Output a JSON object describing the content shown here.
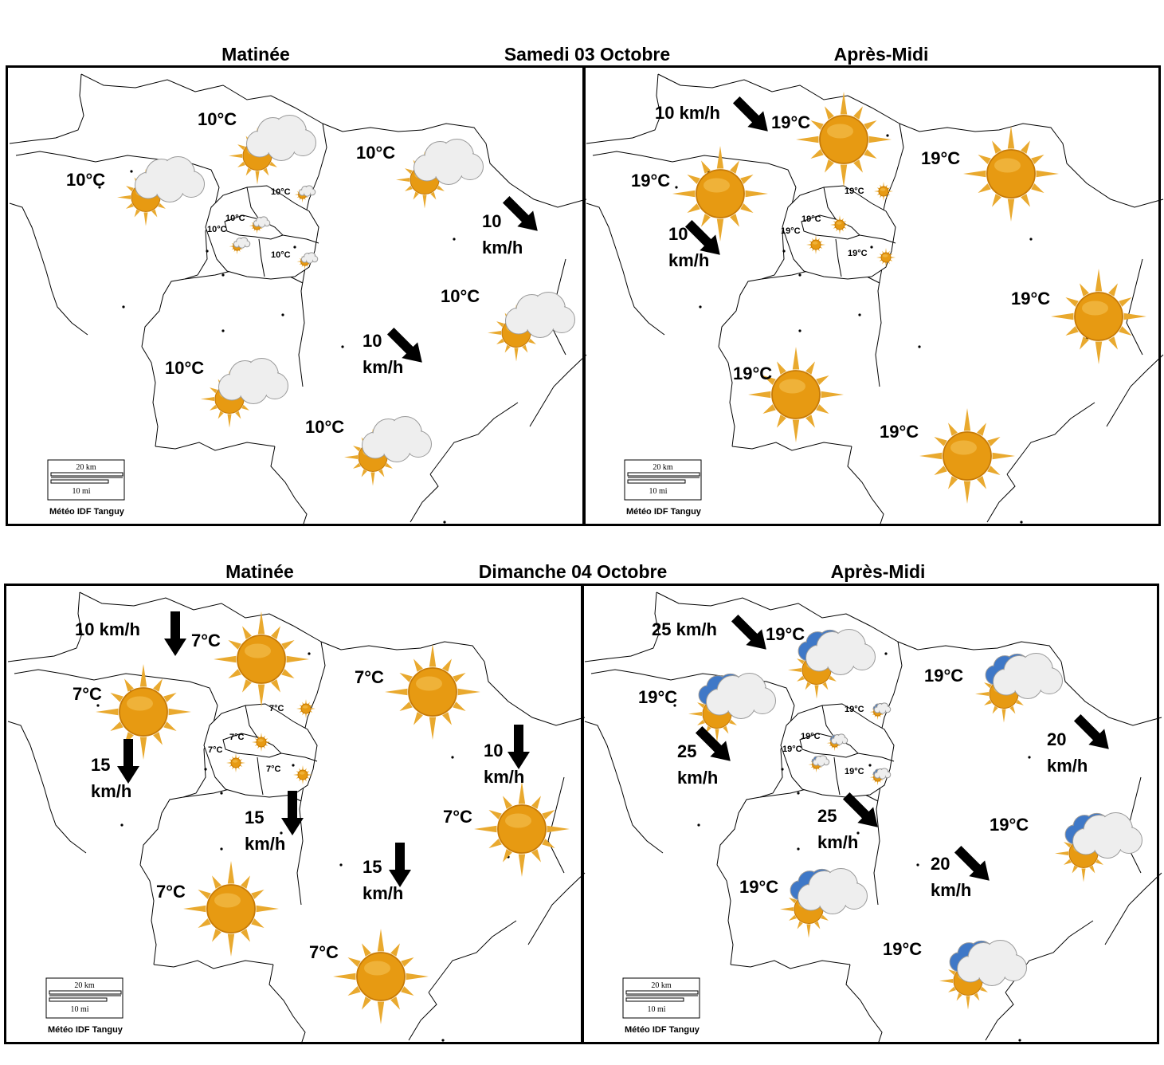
{
  "colors": {
    "sun_core": "#e79a12",
    "sun_rays": "#e9a92e",
    "cloud": "#eeeeee",
    "cloud_dark": "#3f78c7",
    "border": "#000000"
  },
  "scale_bar": {
    "km_label": "20 km",
    "mi_label": "10 mi"
  },
  "credit": "Météo IDF Tanguy",
  "days": [
    {
      "date_label": "Samedi 03 Octobre",
      "morning": {
        "label": "Matinée",
        "temps": [
          {
            "text": "10°C",
            "icon": "sun-cloud-icon",
            "size": "large"
          },
          {
            "text": "10°C",
            "icon": "sun-cloud-icon",
            "size": "large"
          },
          {
            "text": "10°C",
            "icon": "sun-cloud-icon",
            "size": "large"
          },
          {
            "text": "10°C",
            "icon": "sun-cloud-icon",
            "size": "large"
          },
          {
            "text": "10°C",
            "icon": "sun-cloud-icon",
            "size": "large"
          },
          {
            "text": "10°C",
            "icon": "sun-cloud-icon",
            "size": "large"
          },
          {
            "text": "10°C",
            "icon": "sun-cloud-icon",
            "size": "small"
          },
          {
            "text": "10°C",
            "icon": "sun-cloud-icon",
            "size": "small"
          },
          {
            "text": "10°C",
            "icon": "sun-cloud-icon",
            "size": "small"
          },
          {
            "text": "10°C",
            "icon": "sun-cloud-icon",
            "size": "small"
          }
        ],
        "winds": [
          {
            "line1": "10",
            "line2": "km/h",
            "direction": "south-east"
          },
          {
            "line1": "10",
            "line2": "km/h",
            "direction": "south-east"
          }
        ]
      },
      "afternoon": {
        "label": "Après-Midi",
        "temps": [
          {
            "text": "19°C",
            "icon": "sun-icon",
            "size": "large"
          },
          {
            "text": "19°C",
            "icon": "sun-icon",
            "size": "large"
          },
          {
            "text": "19°C",
            "icon": "sun-icon",
            "size": "large"
          },
          {
            "text": "19°C",
            "icon": "sun-icon",
            "size": "large"
          },
          {
            "text": "19°C",
            "icon": "sun-icon",
            "size": "large"
          },
          {
            "text": "19°C",
            "icon": "sun-icon",
            "size": "large"
          },
          {
            "text": "19°C",
            "icon": "sun-icon",
            "size": "small"
          },
          {
            "text": "19°C",
            "icon": "sun-icon",
            "size": "small"
          },
          {
            "text": "19°C",
            "icon": "sun-icon",
            "size": "small"
          },
          {
            "text": "19°C",
            "icon": "sun-icon",
            "size": "small"
          }
        ],
        "winds": [
          {
            "line1": "10 km/h",
            "line2": "",
            "direction": "south-east"
          },
          {
            "line1": "10",
            "line2": "km/h",
            "direction": "south-east"
          }
        ]
      }
    },
    {
      "date_label": "Dimanche 04 Octobre",
      "morning": {
        "label": "Matinée",
        "temps": [
          {
            "text": "7°C",
            "icon": "sun-icon",
            "size": "large"
          },
          {
            "text": "7°C",
            "icon": "sun-icon",
            "size": "large"
          },
          {
            "text": "7°C",
            "icon": "sun-icon",
            "size": "large"
          },
          {
            "text": "7°C",
            "icon": "sun-icon",
            "size": "large"
          },
          {
            "text": "7°C",
            "icon": "sun-icon",
            "size": "large"
          },
          {
            "text": "7°C",
            "icon": "sun-icon",
            "size": "large"
          },
          {
            "text": "7°C",
            "icon": "sun-icon",
            "size": "small"
          },
          {
            "text": "7°C",
            "icon": "sun-icon",
            "size": "small"
          },
          {
            "text": "7°C",
            "icon": "sun-icon",
            "size": "small"
          },
          {
            "text": "7°C",
            "icon": "sun-icon",
            "size": "small"
          }
        ],
        "winds": [
          {
            "line1": "10 km/h",
            "line2": "",
            "direction": "south"
          },
          {
            "line1": "15",
            "line2": "km/h",
            "direction": "south"
          },
          {
            "line1": "10",
            "line2": "km/h",
            "direction": "south"
          },
          {
            "line1": "15",
            "line2": "km/h",
            "direction": "south"
          },
          {
            "line1": "15",
            "line2": "km/h",
            "direction": "south"
          }
        ]
      },
      "afternoon": {
        "label": "Après-Midi",
        "temps": [
          {
            "text": "19°C",
            "icon": "sun-cloud-icon",
            "size": "large"
          },
          {
            "text": "19°C",
            "icon": "sun-cloud-icon",
            "size": "large"
          },
          {
            "text": "19°C",
            "icon": "sun-cloud-icon",
            "size": "large"
          },
          {
            "text": "19°C",
            "icon": "sun-cloud-icon",
            "size": "large"
          },
          {
            "text": "19°C",
            "icon": "sun-cloud-icon",
            "size": "large"
          },
          {
            "text": "19°C",
            "icon": "sun-cloud-icon",
            "size": "large"
          },
          {
            "text": "19°C",
            "icon": "sun-cloud-icon",
            "size": "small"
          },
          {
            "text": "19°C",
            "icon": "sun-cloud-icon",
            "size": "small"
          },
          {
            "text": "19°C",
            "icon": "sun-cloud-icon",
            "size": "small"
          },
          {
            "text": "19°C",
            "icon": "sun-cloud-icon",
            "size": "small"
          }
        ],
        "winds": [
          {
            "line1": "25 km/h",
            "line2": "",
            "direction": "south-east"
          },
          {
            "line1": "25",
            "line2": "km/h",
            "direction": "south-east"
          },
          {
            "line1": "20",
            "line2": "km/h",
            "direction": "south-east"
          },
          {
            "line1": "25",
            "line2": "km/h",
            "direction": "south-east"
          },
          {
            "line1": "20",
            "line2": "km/h",
            "direction": "south-east"
          }
        ]
      }
    }
  ]
}
